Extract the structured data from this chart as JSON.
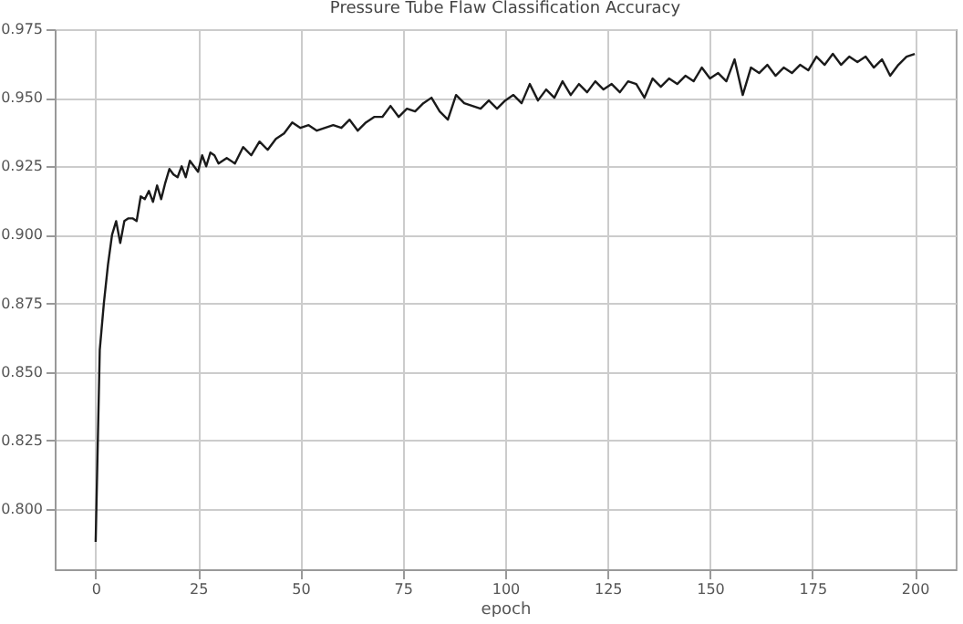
{
  "chart_data": {
    "type": "line",
    "title": "Pressure Tube Flaw Classification Accuracy",
    "xlabel": "epoch",
    "x": [
      0,
      1,
      2,
      3,
      4,
      5,
      6,
      7,
      8,
      9,
      10,
      11,
      12,
      13,
      14,
      15,
      16,
      17,
      18,
      19,
      20,
      21,
      22,
      23,
      24,
      25,
      26,
      27,
      28,
      29,
      30,
      32,
      34,
      36,
      38,
      40,
      42,
      44,
      46,
      48,
      50,
      52,
      54,
      56,
      58,
      60,
      62,
      64,
      66,
      68,
      70,
      72,
      74,
      76,
      78,
      80,
      82,
      84,
      86,
      88,
      90,
      92,
      94,
      96,
      98,
      100,
      102,
      104,
      106,
      108,
      110,
      112,
      114,
      116,
      118,
      120,
      122,
      124,
      126,
      128,
      130,
      132,
      134,
      136,
      138,
      140,
      142,
      144,
      146,
      148,
      150,
      152,
      154,
      156,
      158,
      160,
      162,
      164,
      166,
      168,
      170,
      172,
      174,
      176,
      178,
      180,
      182,
      184,
      186,
      188,
      190,
      192,
      194,
      196,
      198,
      200
    ],
    "series": [
      {
        "color": "#1a1a1a",
        "values": [
          0.788,
          0.858,
          0.875,
          0.889,
          0.9,
          0.905,
          0.897,
          0.905,
          0.906,
          0.906,
          0.905,
          0.914,
          0.913,
          0.916,
          0.912,
          0.918,
          0.913,
          0.919,
          0.924,
          0.922,
          0.921,
          0.925,
          0.921,
          0.927,
          0.925,
          0.923,
          0.929,
          0.925,
          0.93,
          0.929,
          0.926,
          0.928,
          0.926,
          0.932,
          0.929,
          0.934,
          0.931,
          0.935,
          0.937,
          0.941,
          0.939,
          0.94,
          0.938,
          0.939,
          0.94,
          0.939,
          0.942,
          0.938,
          0.941,
          0.943,
          0.943,
          0.947,
          0.943,
          0.946,
          0.945,
          0.948,
          0.95,
          0.945,
          0.942,
          0.951,
          0.948,
          0.947,
          0.946,
          0.949,
          0.946,
          0.949,
          0.951,
          0.948,
          0.955,
          0.949,
          0.953,
          0.95,
          0.956,
          0.951,
          0.955,
          0.952,
          0.956,
          0.953,
          0.955,
          0.952,
          0.956,
          0.955,
          0.95,
          0.957,
          0.954,
          0.957,
          0.955,
          0.958,
          0.956,
          0.961,
          0.957,
          0.959,
          0.956,
          0.964,
          0.951,
          0.961,
          0.959,
          0.962,
          0.958,
          0.961,
          0.959,
          0.962,
          0.96,
          0.965,
          0.962,
          0.966,
          0.962,
          0.965,
          0.963,
          0.965,
          0.961,
          0.964,
          0.958,
          0.962,
          0.965,
          0.966
        ]
      }
    ],
    "xlim": [
      -10,
      210
    ],
    "xticks": [
      0,
      25,
      50,
      75,
      100,
      125,
      150,
      175,
      200
    ],
    "ylim": [
      0.778,
      0.975
    ],
    "yticks": [
      {
        "value": 0.8,
        "label": "0.800"
      },
      {
        "value": 0.825,
        "label": "0.825"
      },
      {
        "value": 0.85,
        "label": "0.850"
      },
      {
        "value": 0.875,
        "label": "0.875"
      },
      {
        "value": 0.9,
        "label": "0.900"
      },
      {
        "value": 0.925,
        "label": "0.925"
      },
      {
        "value": 0.95,
        "label": "0.950"
      },
      {
        "value": 0.975,
        "label": "0.975"
      }
    ],
    "grid": true,
    "marker": "none",
    "line_style": "solid"
  }
}
